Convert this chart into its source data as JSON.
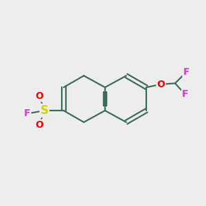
{
  "bg_color": "#ededed",
  "bond_color": "#3d6b5b",
  "bond_width": 1.6,
  "atom_colors": {
    "S": "#d4d400",
    "O": "#ff0000",
    "F": "#cc44cc",
    "C": "#3d6b5b"
  },
  "figsize": [
    3.0,
    3.0
  ],
  "dpi": 100,
  "xlim": [
    0,
    10
  ],
  "ylim": [
    0,
    10
  ]
}
